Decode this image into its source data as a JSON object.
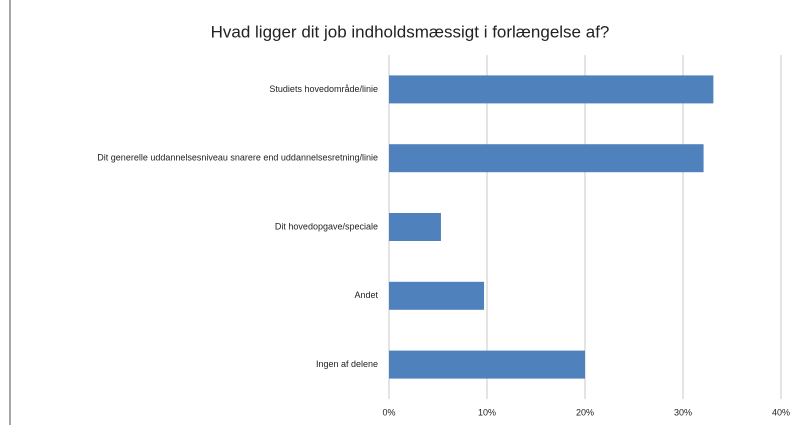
{
  "chart_data": {
    "type": "hbar",
    "title": "Hvad ligger dit job indholdsmæssigt i forlængelse af?",
    "categories": [
      "Studiets hovedområde/linie",
      "Dit generelle uddannelsesniveau snarere end uddannelsesretning/linie",
      "Dit hovedopgave/speciale",
      "Andet",
      "Ingen af delene"
    ],
    "values": [
      33.1,
      32.1,
      5.3,
      9.7,
      20
    ],
    "color": "#4f81bd",
    "xlim": [
      0,
      40
    ],
    "xticks": [
      {
        "value": 0,
        "label": "0%"
      },
      {
        "value": 10,
        "label": "10%"
      },
      {
        "value": 20,
        "label": "20%"
      },
      {
        "value": 30,
        "label": "30%"
      },
      {
        "value": 40,
        "label": "40%"
      }
    ],
    "grid": true
  }
}
